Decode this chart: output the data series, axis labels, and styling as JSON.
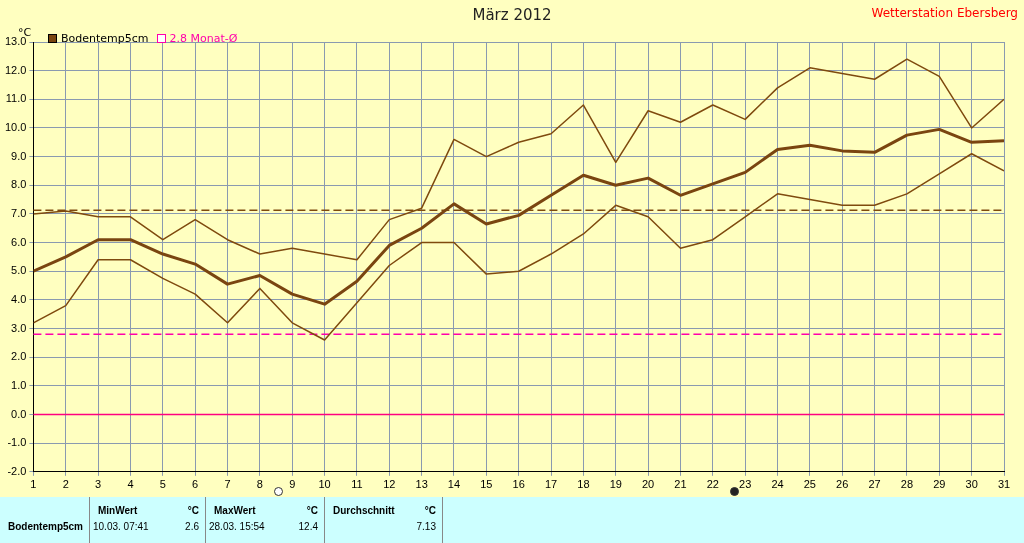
{
  "chart_data": {
    "type": "line",
    "title": "März 2012",
    "ylabel": "°C",
    "annotations": [
      "Wetterstation Ebersberg",
      "Bodentemp5cm",
      "MinWert",
      "°C",
      "10.03.  07:41",
      "2.6",
      "MaxWert",
      "°C",
      "28.03.  15:54",
      "12.4",
      "Durchschnitt",
      "°C",
      "7.13"
    ],
    "x": [
      1,
      2,
      3,
      4,
      5,
      6,
      7,
      8,
      9,
      10,
      11,
      12,
      13,
      14,
      15,
      16,
      17,
      18,
      19,
      20,
      21,
      22,
      23,
      24,
      25,
      26,
      27,
      28,
      29,
      30,
      31
    ],
    "series": [
      {
        "color": "#7f4a0e",
        "values": [
          7.0,
          7.1,
          6.9,
          6.9,
          6.1,
          6.8,
          6.1,
          5.6,
          5.8,
          5.6,
          5.4,
          6.8,
          7.2,
          9.6,
          9.0,
          9.5,
          9.8,
          10.8,
          8.8,
          10.6,
          10.2,
          10.8,
          10.3,
          11.4,
          12.1,
          11.9,
          11.7,
          12.4,
          11.8,
          10.0,
          11.0
        ]
      },
      {
        "name": "Bodentemp5cm",
        "color": "#7a4510",
        "values": [
          5.0,
          5.5,
          6.1,
          6.1,
          5.6,
          5.25,
          4.55,
          4.85,
          4.2,
          3.85,
          4.65,
          5.9,
          6.5,
          7.35,
          6.65,
          6.95,
          7.65,
          8.35,
          8.0,
          8.25,
          7.65,
          8.05,
          8.45,
          9.25,
          9.4,
          9.2,
          9.15,
          9.75,
          9.95,
          9.5,
          9.55
        ]
      },
      {
        "color": "#7f4a0e",
        "values": [
          3.2,
          3.8,
          5.4,
          5.4,
          4.75,
          4.2,
          3.2,
          4.4,
          3.2,
          2.6,
          3.9,
          5.2,
          6.0,
          6.0,
          4.9,
          5.0,
          5.6,
          6.3,
          7.3,
          6.9,
          5.8,
          6.1,
          6.9,
          7.7,
          7.5,
          7.3,
          7.3,
          7.7,
          8.4,
          9.1,
          8.5
        ]
      }
    ],
    "xlim": [
      1,
      31
    ],
    "xticks": [
      1,
      2,
      3,
      4,
      5,
      6,
      7,
      8,
      9,
      10,
      11,
      12,
      13,
      14,
      15,
      16,
      17,
      18,
      19,
      20,
      21,
      22,
      23,
      24,
      25,
      26,
      27,
      28,
      29,
      30,
      31
    ],
    "ylim": [
      -2,
      13
    ],
    "yticks": [
      {
        "value": -2,
        "label": "-2.0"
      },
      {
        "value": -1,
        "label": "-1.0"
      },
      {
        "value": 0,
        "label": "0.0"
      },
      {
        "value": 1,
        "label": "1.0"
      },
      {
        "value": 2,
        "label": "2.0"
      },
      {
        "value": 3,
        "label": "3.0"
      },
      {
        "value": 4,
        "label": "4.0"
      },
      {
        "value": 5,
        "label": "5.0"
      },
      {
        "value": 6,
        "label": "6.0"
      },
      {
        "value": 7,
        "label": "7.0"
      },
      {
        "value": 8,
        "label": "8.0"
      },
      {
        "value": 9,
        "label": "9.0"
      },
      {
        "value": 10,
        "label": "10.0"
      },
      {
        "value": 11,
        "label": "11.0"
      },
      {
        "value": 12,
        "label": "12.0"
      },
      {
        "value": 13,
        "label": "13.0"
      }
    ],
    "ref_lines": [
      {
        "axis": "y",
        "value": 7.13,
        "color": "#7f4a0e",
        "line_style": "dashed"
      },
      {
        "axis": "y",
        "value": 2.8,
        "label": "2.8 Monat-Ø",
        "color": "#ff00aa",
        "line_style": "dashed"
      },
      {
        "axis": "y",
        "value": 0,
        "color": "#ff0080",
        "line_style": "solid"
      }
    ],
    "grid": true,
    "legend": "top left",
    "marker": "none",
    "line_style": "solid"
  }
}
